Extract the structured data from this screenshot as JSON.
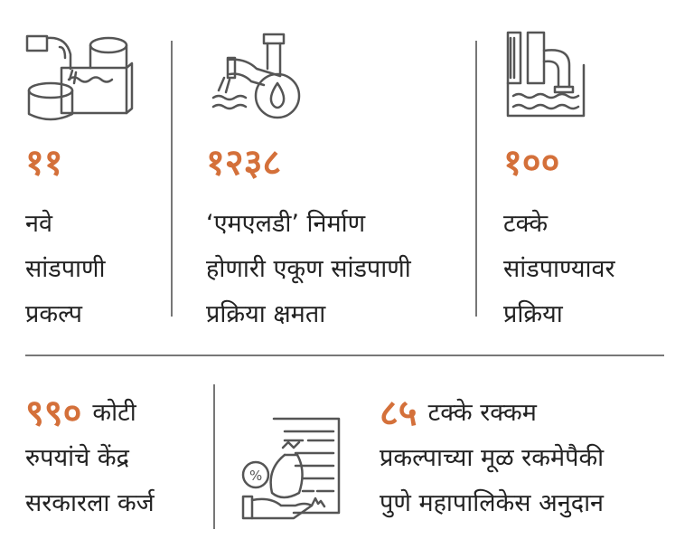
{
  "colors": {
    "accent": "#d4703a",
    "text": "#222222",
    "divider": "#777777",
    "icon": "#555555"
  },
  "stats": [
    {
      "icon": "sewage-tanks-icon",
      "number": "११",
      "lines": [
        "नवे",
        "सांडपाणी",
        "प्रकल्प"
      ]
    },
    {
      "icon": "pipe-water-drop-icon",
      "number": "१२३८",
      "lines": [
        "‘एमएलडी’ निर्माण",
        "होणारी एकूण सांडपाणी",
        "प्रक्रिया क्षमता"
      ]
    },
    {
      "icon": "treatment-plant-icon",
      "number": "१००",
      "lines": [
        "टक्के",
        "सांडपाण्यावर",
        "प्रक्रिया"
      ]
    },
    {
      "number": "९९०",
      "lines": [
        "कोटी",
        "रुपयांचे केंद्र",
        "सरकारला कर्ज"
      ]
    },
    {
      "icon": "money-bag-document-icon",
      "number": "८५",
      "lines": [
        "टक्के रक्कम",
        "प्रकल्पाच्या मूळ रकमेपैकी",
        "पुणे महापालिकेस अनुदान"
      ]
    }
  ]
}
